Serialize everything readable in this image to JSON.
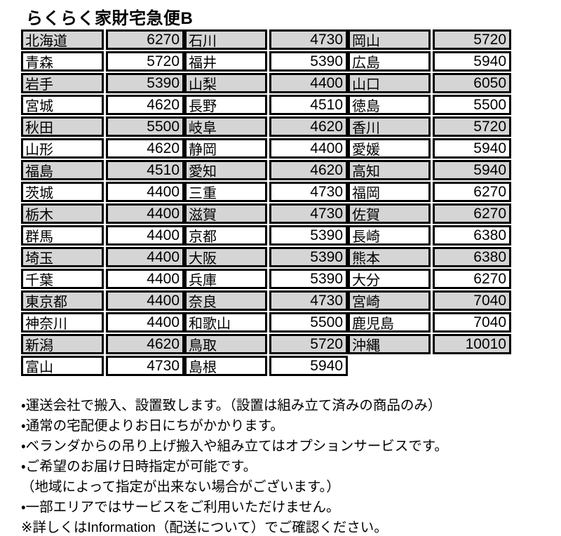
{
  "title": "らくらく家財宅急便B",
  "colors": {
    "row_shade": "#d5d5d5",
    "row_plain": "#ffffff",
    "border": "#000000"
  },
  "table": {
    "columns": [
      {
        "rows": [
          {
            "prefecture": "北海道",
            "fee": "6270"
          },
          {
            "prefecture": "青森",
            "fee": "5720"
          },
          {
            "prefecture": "岩手",
            "fee": "5390"
          },
          {
            "prefecture": "宮城",
            "fee": "4620"
          },
          {
            "prefecture": "秋田",
            "fee": "5500"
          },
          {
            "prefecture": "山形",
            "fee": "4620"
          },
          {
            "prefecture": "福島",
            "fee": "4510"
          },
          {
            "prefecture": "茨城",
            "fee": "4400"
          },
          {
            "prefecture": "栃木",
            "fee": "4400"
          },
          {
            "prefecture": "群馬",
            "fee": "4400"
          },
          {
            "prefecture": "埼玉",
            "fee": "4400"
          },
          {
            "prefecture": "千葉",
            "fee": "4400"
          },
          {
            "prefecture": "東京都",
            "fee": "4400"
          },
          {
            "prefecture": "神奈川",
            "fee": "4400"
          },
          {
            "prefecture": "新潟",
            "fee": "4620"
          },
          {
            "prefecture": "富山",
            "fee": "4730"
          }
        ]
      },
      {
        "rows": [
          {
            "prefecture": "石川",
            "fee": "4730"
          },
          {
            "prefecture": "福井",
            "fee": "5390"
          },
          {
            "prefecture": "山梨",
            "fee": "4400"
          },
          {
            "prefecture": "長野",
            "fee": "4510"
          },
          {
            "prefecture": "岐阜",
            "fee": "4620"
          },
          {
            "prefecture": "静岡",
            "fee": "4400"
          },
          {
            "prefecture": "愛知",
            "fee": "4620"
          },
          {
            "prefecture": "三重",
            "fee": "4730"
          },
          {
            "prefecture": "滋賀",
            "fee": "4730"
          },
          {
            "prefecture": "京都",
            "fee": "5390"
          },
          {
            "prefecture": "大阪",
            "fee": "5390"
          },
          {
            "prefecture": "兵庫",
            "fee": "5390"
          },
          {
            "prefecture": "奈良",
            "fee": "4730"
          },
          {
            "prefecture": "和歌山",
            "fee": "5500"
          },
          {
            "prefecture": "鳥取",
            "fee": "5720"
          },
          {
            "prefecture": "島根",
            "fee": "5940"
          }
        ]
      },
      {
        "rows": [
          {
            "prefecture": "岡山",
            "fee": "5720"
          },
          {
            "prefecture": "広島",
            "fee": "5940"
          },
          {
            "prefecture": "山口",
            "fee": "6050"
          },
          {
            "prefecture": "徳島",
            "fee": "5500"
          },
          {
            "prefecture": "香川",
            "fee": "5720"
          },
          {
            "prefecture": "愛媛",
            "fee": "5940"
          },
          {
            "prefecture": "高知",
            "fee": "5940"
          },
          {
            "prefecture": "福岡",
            "fee": "6270"
          },
          {
            "prefecture": "佐賀",
            "fee": "6270"
          },
          {
            "prefecture": "長崎",
            "fee": "6380"
          },
          {
            "prefecture": "熊本",
            "fee": "6380"
          },
          {
            "prefecture": "大分",
            "fee": "6270"
          },
          {
            "prefecture": "宮崎",
            "fee": "7040"
          },
          {
            "prefecture": "鹿児島",
            "fee": "7040"
          },
          {
            "prefecture": "沖縄",
            "fee": "10010"
          }
        ]
      }
    ]
  },
  "notes": [
    "・運送会社で搬入、設置致します。（設置は組み立て済みの商品のみ）",
    "・通常の宅配便よりお日にちがかかります。",
    "・ベランダからの吊り上げ搬入や組み立てはオプションサービスです。",
    "・ご希望のお届け日時指定が可能です。",
    "（地域によって指定が出来ない場合がございます。）",
    "・一部エリアではサービスをご利用いただけません。",
    "※詳しくはInformation（配送について）でご確認ください。"
  ]
}
